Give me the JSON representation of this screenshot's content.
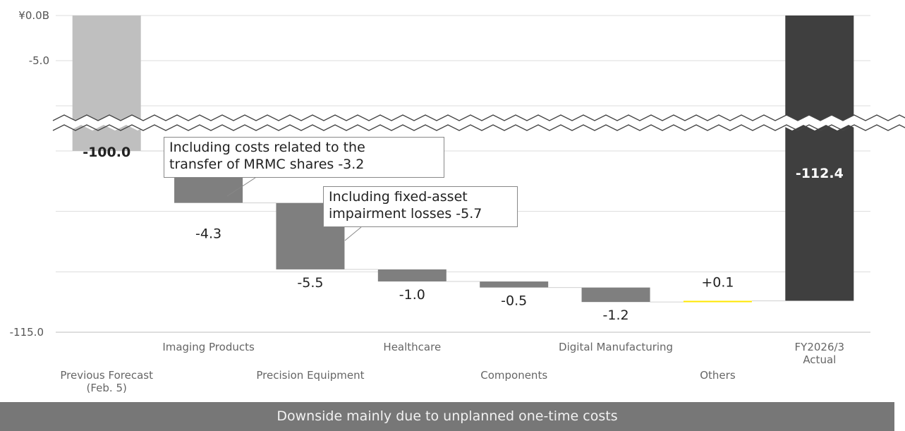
{
  "chart_data": {
    "type": "bar",
    "subtype": "waterfall",
    "categories": [
      [
        "Previous Forecast",
        "(Feb. 5)"
      ],
      [
        "Imaging Products"
      ],
      [
        "Precision Equipment"
      ],
      [
        "Healthcare"
      ],
      [
        "Components"
      ],
      [
        "Digital Manufacturing"
      ],
      [
        "Others"
      ],
      [
        "FY2026/3",
        "Actual"
      ]
    ],
    "values": [
      -100.0,
      -4.3,
      -5.5,
      -1.0,
      -0.5,
      -1.2,
      0.1,
      -112.4
    ],
    "bar_kinds": [
      "total",
      "delta",
      "delta",
      "delta",
      "delta",
      "delta",
      "delta",
      "total"
    ],
    "data_labels": [
      "-100.0",
      "-4.3",
      "-5.5",
      "-1.0",
      "-0.5",
      "-1.2",
      "+0.1",
      "-112.4"
    ],
    "y_tick_labels_top": [
      "¥0.0B",
      "-5.0"
    ],
    "y_tick_label_bottom": "-115.0",
    "axis_break": true,
    "colors": {
      "start_total": "#bfbfbf",
      "end_total": "#3f3f3f",
      "negative": "#7f7f7f",
      "positive": "#ffe600"
    },
    "annotations": [
      {
        "target": "Imaging Products",
        "lines": [
          "Including costs related to the",
          "transfer of MRMC shares -3.2"
        ]
      },
      {
        "target": "Precision Equipment",
        "lines": [
          "Including fixed-asset",
          "impairment losses -5.7"
        ]
      }
    ]
  },
  "footer": {
    "text": "Downside mainly due to unplanned one-time costs"
  }
}
